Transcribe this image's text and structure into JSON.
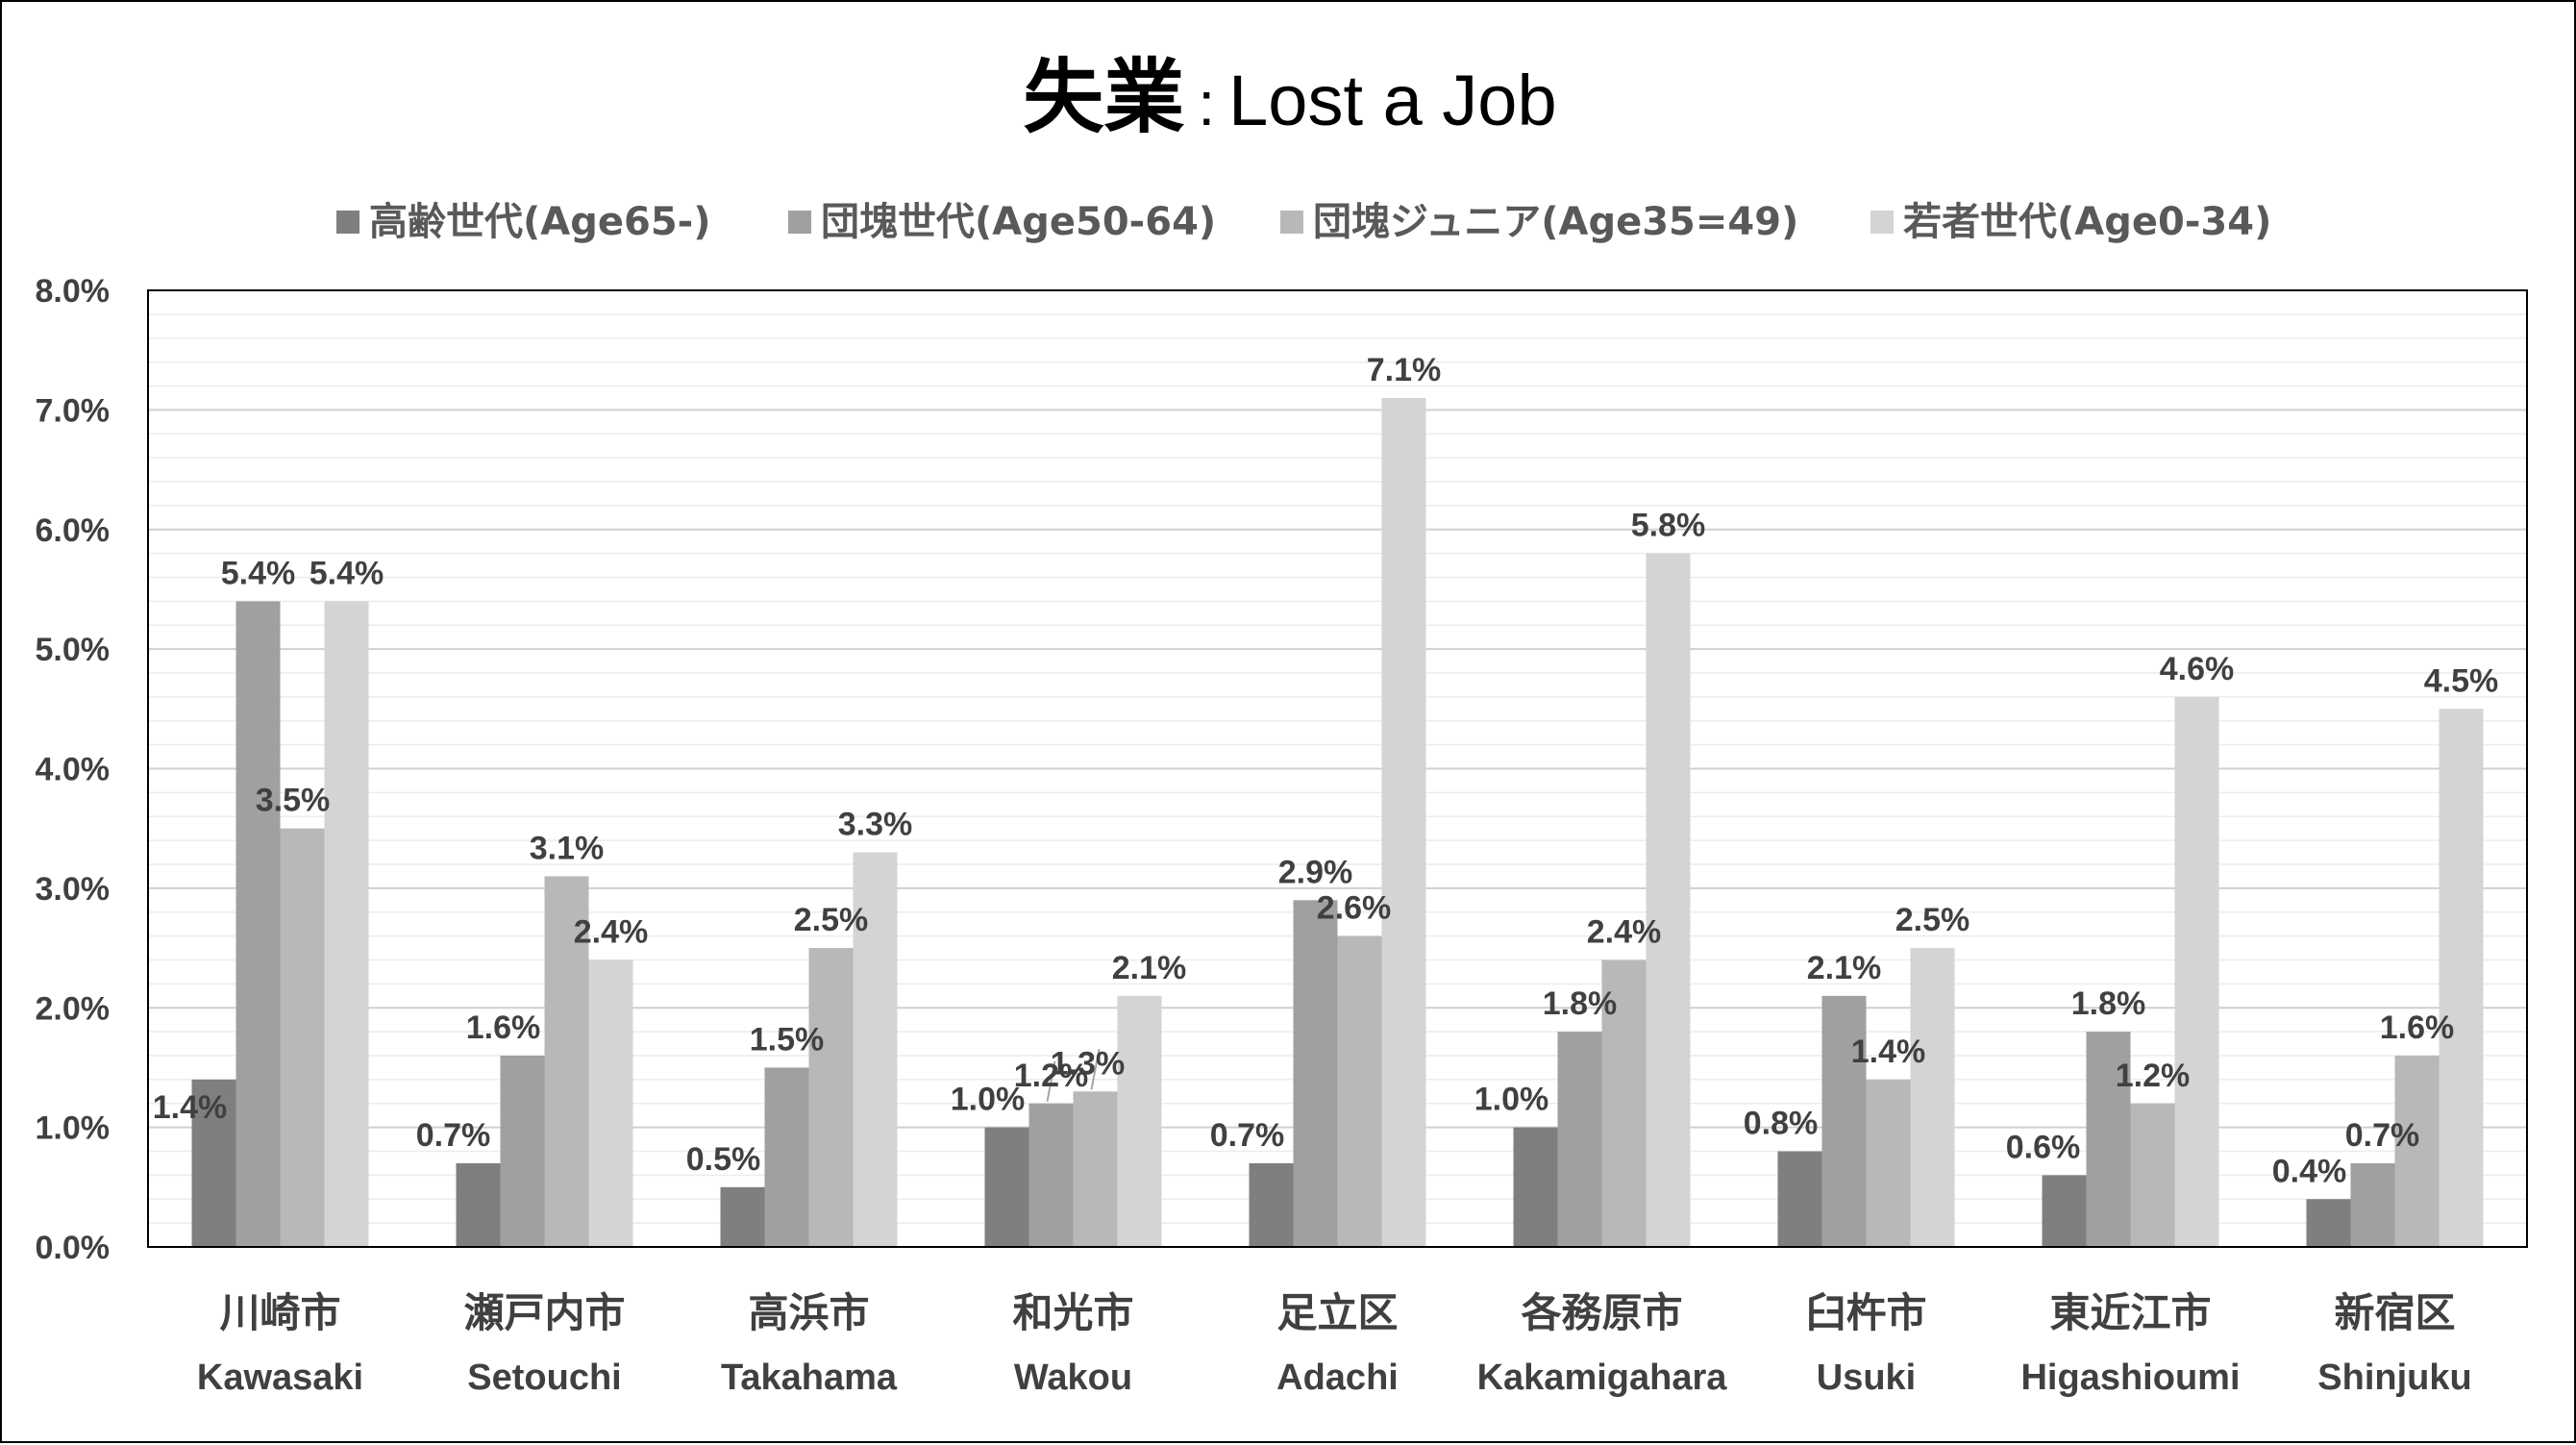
{
  "chart_data": {
    "type": "bar",
    "title": {
      "jp": "失業",
      "sep": ":",
      "en": "Lost a Job"
    },
    "categories": [
      {
        "jp": "川崎市",
        "en": "Kawasaki"
      },
      {
        "jp": "瀬戸内市",
        "en": "Setouchi"
      },
      {
        "jp": "高浜市",
        "en": "Takahama"
      },
      {
        "jp": "和光市",
        "en": "Wakou"
      },
      {
        "jp": "足立区",
        "en": "Adachi"
      },
      {
        "jp": "各務原市",
        "en": "Kakamigahara"
      },
      {
        "jp": "臼杵市",
        "en": "Usuki"
      },
      {
        "jp": "東近江市",
        "en": "Higashioumi"
      },
      {
        "jp": "新宿区",
        "en": "Shinjuku"
      }
    ],
    "series": [
      {
        "name": "高齢世代(Age65-)",
        "color": "#7f7f7f",
        "values": [
          1.4,
          0.7,
          0.5,
          1.0,
          0.7,
          1.0,
          0.8,
          0.6,
          0.4
        ]
      },
      {
        "name": "団塊世代(Age50-64)",
        "color": "#a0a0a0",
        "values": [
          5.4,
          1.6,
          1.5,
          1.2,
          2.9,
          1.8,
          2.1,
          1.8,
          0.7
        ]
      },
      {
        "name": "団塊ジュニア(Age35=49)",
        "color": "#b8b8b8",
        "values": [
          3.5,
          3.1,
          2.5,
          1.3,
          2.6,
          2.4,
          1.4,
          1.2,
          1.6
        ]
      },
      {
        "name": "若者世代(Age0-34)",
        "color": "#d4d4d4",
        "values": [
          5.4,
          2.4,
          3.3,
          2.1,
          7.1,
          5.8,
          2.5,
          4.6,
          4.5
        ]
      }
    ],
    "data_labels": [
      [
        "1.4%",
        "0.7%",
        "0.5%",
        "1.0%",
        "0.7%",
        "1.0%",
        "0.8%",
        "0.6%",
        "0.4%"
      ],
      [
        "5.4%",
        "1.6%",
        "1.5%",
        "1.2%",
        "2.9%",
        "1.8%",
        "2.1%",
        "1.8%",
        "0.7%"
      ],
      [
        "3.5%",
        "3.1%",
        "2.5%",
        "1.3%",
        "2.6%",
        "2.4%",
        "1.4%",
        "1.2%",
        "1.6%"
      ],
      [
        "5.4%",
        "2.4%",
        "3.3%",
        "2.1%",
        "7.1%",
        "5.8%",
        "2.5%",
        "4.6%",
        "4.5%"
      ]
    ],
    "yticks": [
      "0.0%",
      "1.0%",
      "2.0%",
      "3.0%",
      "4.0%",
      "5.0%",
      "6.0%",
      "7.0%",
      "8.0%"
    ],
    "ylim": [
      0,
      8
    ],
    "grid": true,
    "legend_position": "top"
  }
}
